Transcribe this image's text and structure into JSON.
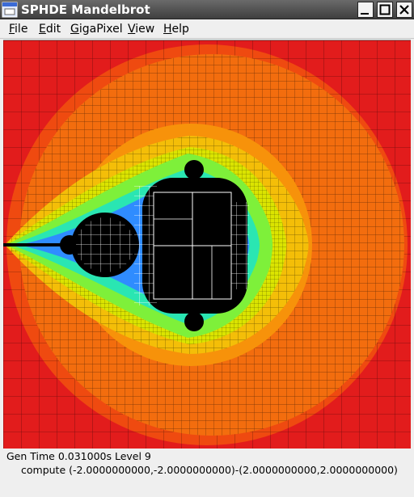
{
  "window": {
    "title": "SPHDE Mandelbrot",
    "icon": "application-window-icon",
    "controls": [
      "minimize-icon",
      "maximize-icon",
      "close-icon"
    ]
  },
  "menu": {
    "file": {
      "label_first": "F",
      "label_rest": "ile"
    },
    "edit": {
      "label_first": "E",
      "label_rest": "dit"
    },
    "gigapixel": {
      "label_first": "G",
      "label_rest": "igaPixel"
    },
    "view": {
      "label_first": "V",
      "label_rest": "iew"
    },
    "help": {
      "label_first": "H",
      "label_rest": "elp"
    }
  },
  "status": {
    "gen_time": "Gen Time 0.031000s  Level 9",
    "compute": "compute (-2.0000000000,-2.0000000000)-(2.0000000000,2.0000000000)"
  },
  "colors": {
    "outer": "#e21c1c",
    "band1": "#ef4a10",
    "band2": "#f36d0e",
    "band3": "#f7920a",
    "band4": "#f4be08",
    "band5": "#dbe400",
    "band6": "#7ef03a",
    "band7": "#2ae6b2",
    "band8": "#2f8cff",
    "set": "#000000"
  }
}
